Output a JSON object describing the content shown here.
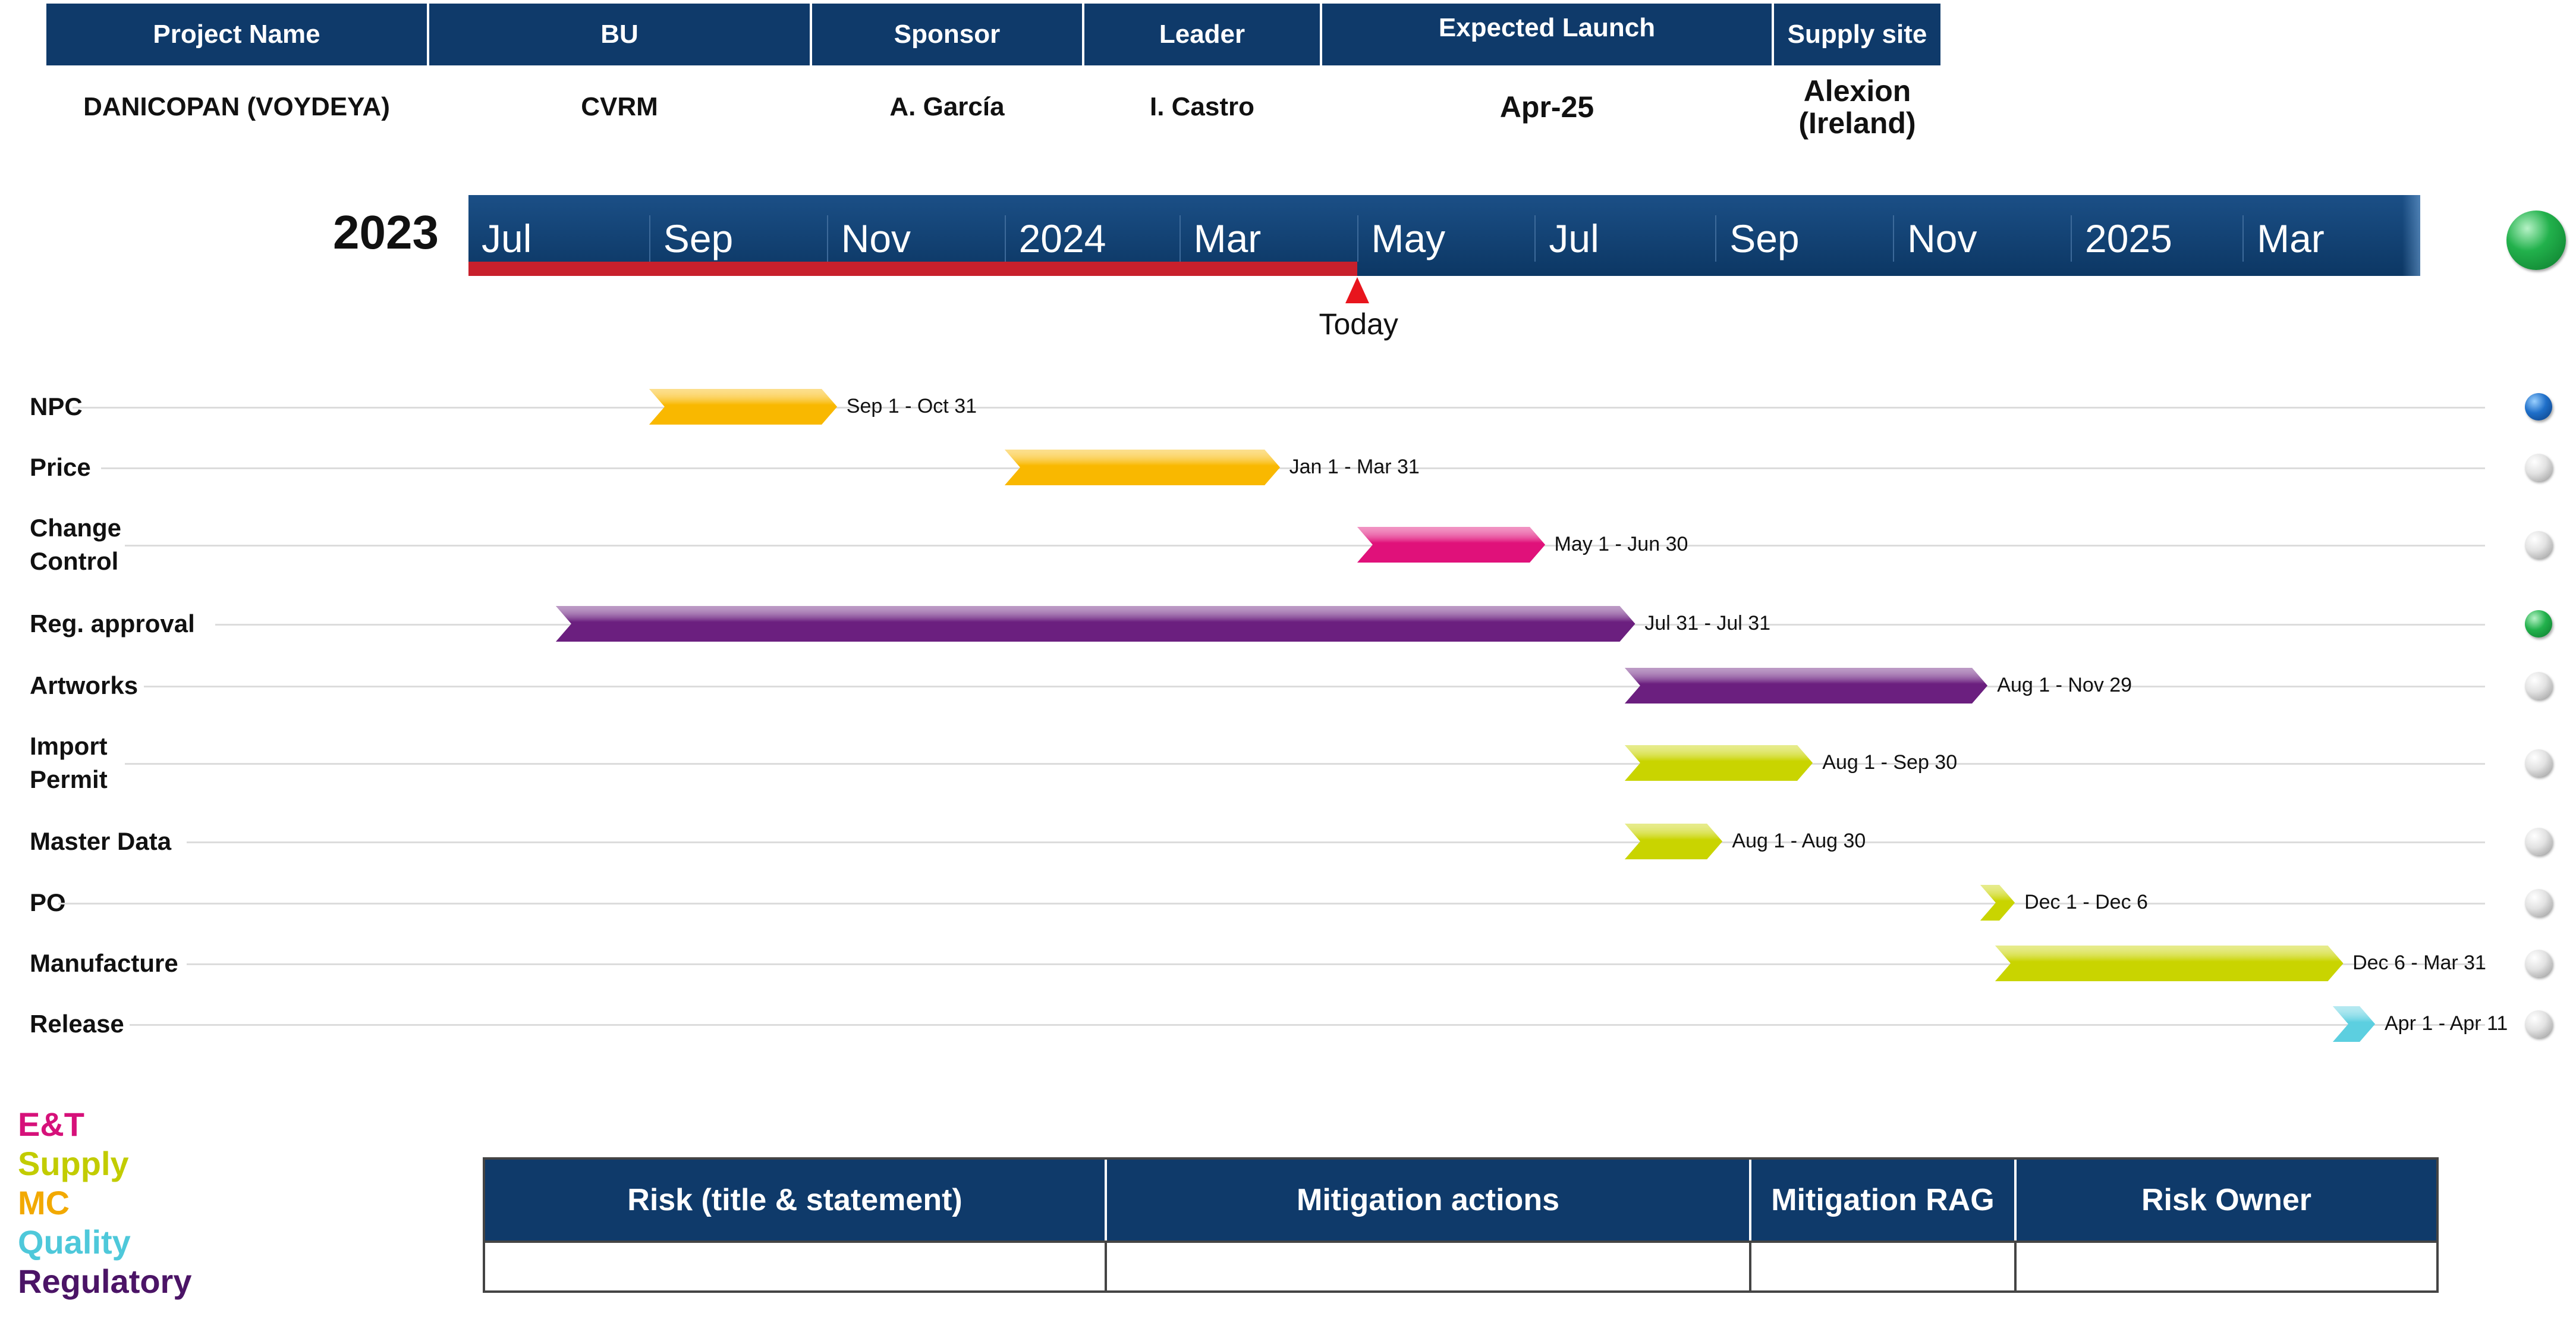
{
  "header": {
    "columns": [
      {
        "label": "Project Name",
        "value": "DANICOPAN (VOYDEYA)"
      },
      {
        "label": "BU",
        "value": "CVRM"
      },
      {
        "label": "Sponsor",
        "value": "A. García"
      },
      {
        "label": "Leader",
        "value": "I. Castro"
      },
      {
        "label": "Expected Launch",
        "value": "Apr-25"
      },
      {
        "label": "Supply site",
        "value_lines": [
          "Alexion",
          "(Ireland)"
        ]
      }
    ]
  },
  "timeline": {
    "year_label": "2023",
    "months": [
      "Jul",
      "Sep",
      "Nov",
      "2024",
      "Mar",
      "May",
      "Jul",
      "Sep",
      "Nov",
      "2025",
      "Mar"
    ],
    "today_label": "Today",
    "overall_status_color": "#22b14c"
  },
  "chart_data": {
    "type": "gantt",
    "x_axis": {
      "start": "2023-07-01",
      "end": "2025-04-30",
      "tick_labels": [
        "Jul",
        "Sep",
        "Nov",
        "2024",
        "Mar",
        "May",
        "Jul",
        "Sep",
        "Nov",
        "2025",
        "Mar"
      ]
    },
    "today": "2024-05-01",
    "tasks": [
      {
        "name": "NPC",
        "start": "2023-09-01",
        "end": "2023-10-31",
        "label": "Sep 1 - Oct 31",
        "color": "#f9b800",
        "status": "blue"
      },
      {
        "name": "Price",
        "start": "2024-01-01",
        "end": "2024-03-31",
        "label": "Jan 1 - Mar 31",
        "color": "#f9b800",
        "status": "grey"
      },
      {
        "name": "Change Control",
        "start": "2024-05-01",
        "end": "2024-06-30",
        "label": "May 1 - Jun 30",
        "color": "#e0117a",
        "status": "grey"
      },
      {
        "name": "Reg. approval",
        "start": "2023-07-31",
        "end": "2024-07-31",
        "label": "Jul 31 - Jul 31",
        "color": "#6b1f7f",
        "status": "green"
      },
      {
        "name": "Artworks",
        "start": "2024-08-01",
        "end": "2024-11-29",
        "label": "Aug 1 - Nov 29",
        "color": "#6b1f7f",
        "status": "grey"
      },
      {
        "name": "Import Permit",
        "start": "2024-08-01",
        "end": "2024-09-30",
        "label": "Aug 1 - Sep 30",
        "color": "#c9d400",
        "status": "grey"
      },
      {
        "name": "Master Data",
        "start": "2024-08-01",
        "end": "2024-08-30",
        "label": "Aug 1 - Aug 30",
        "color": "#c9d400",
        "status": "grey"
      },
      {
        "name": "PO",
        "start": "2024-12-01",
        "end": "2024-12-06",
        "label": "Dec 1 - Dec 6",
        "color": "#c9d400",
        "status": "grey"
      },
      {
        "name": "Manufacture",
        "start": "2024-12-06",
        "end": "2025-03-31",
        "label": "Dec 6 - Mar 31",
        "color": "#c9d400",
        "status": "grey"
      },
      {
        "name": "Release",
        "start": "2025-04-01",
        "end": "2025-04-11",
        "label": "Apr 1 - Apr 11",
        "color": "#5ccfe0",
        "status": "grey"
      }
    ]
  },
  "legend": [
    {
      "label": "E&T",
      "color": "#d6117a"
    },
    {
      "label": "Supply",
      "color": "#c2cc00"
    },
    {
      "label": "MC",
      "color": "#f2a900"
    },
    {
      "label": "Quality",
      "color": "#4ec8da"
    },
    {
      "label": "Regulatory",
      "color": "#4b1466"
    }
  ],
  "risk_table": {
    "columns": [
      "Risk (title & statement)",
      "Mitigation actions",
      "Mitigation RAG",
      "Risk Owner"
    ]
  }
}
